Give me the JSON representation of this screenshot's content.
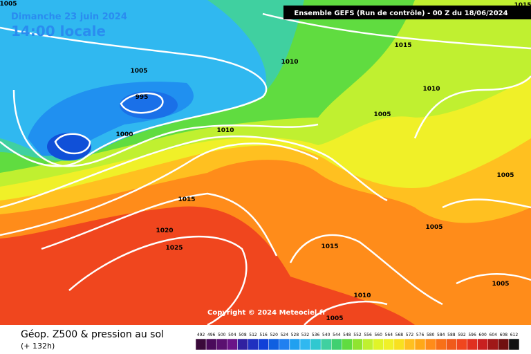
{
  "header": {
    "date": "Dimanche 23 juin 2024",
    "time": "14:00 locale",
    "run": "Ensemble GEFS  (Run de contrôle)  -  00 Z du 18/06/2024"
  },
  "map": {
    "copyright": "Copyright © 2024 Meteociel.fr",
    "isobar_labels": [
      "1005",
      "1015",
      "1015",
      "1010",
      "1005",
      "995",
      "1010",
      "1005",
      "1000",
      "1010",
      "1005",
      "1015",
      "1020",
      "1005",
      "1025",
      "1015",
      "1005",
      "1010",
      "1005"
    ]
  },
  "footer": {
    "title": "Géop. Z500 & pression au sol",
    "lead": "(+ 132h)"
  },
  "legend": {
    "values": [
      492,
      496,
      500,
      504,
      508,
      512,
      516,
      520,
      524,
      528,
      532,
      536,
      540,
      544,
      548,
      552,
      556,
      560,
      564,
      568,
      572,
      576,
      580,
      584,
      588,
      592,
      596,
      600,
      604,
      608,
      612
    ],
    "colors": [
      "#3a0a3a",
      "#4a0a5a",
      "#5a1070",
      "#6a1488",
      "#3020a0",
      "#2030c0",
      "#1040d8",
      "#1060e0",
      "#2080f0",
      "#20a0f0",
      "#30b8f0",
      "#30c8d0",
      "#40d0a0",
      "#40d070",
      "#60dc40",
      "#90e430",
      "#c0f030",
      "#e0f428",
      "#f0f028",
      "#f8e020",
      "#ffc020",
      "#ffa818",
      "#ff8c1a",
      "#f87018",
      "#f05a1a",
      "#f0461e",
      "#e03020",
      "#c82020",
      "#a01818",
      "#701010",
      "#101010"
    ]
  }
}
